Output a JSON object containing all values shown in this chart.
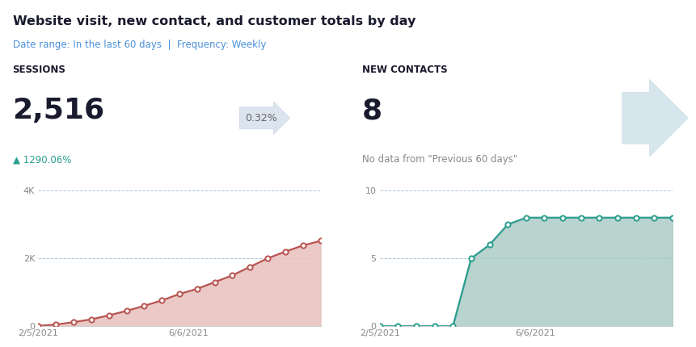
{
  "title": "Website visit, new contact, and customer totals by day",
  "subtitle": "Date range: In the last 60 days  |  Frequency: Weekly",
  "title_color": "#1a1a2e",
  "subtitle_color": "#4a90d9",
  "bg_color": "#ffffff",
  "sessions_label": "SESSIONS",
  "sessions_value": "2,516",
  "sessions_pct_label": "1290.06%",
  "conversion_rate": "0.32%",
  "new_contacts_label": "NEW CONTACTS",
  "new_contacts_value": "8",
  "no_data_text": "No data from \"Previous 60 days\"",
  "sessions_x": [
    0,
    1,
    2,
    3,
    4,
    5,
    6,
    7,
    8,
    9,
    10,
    11,
    12,
    13,
    14,
    15,
    16
  ],
  "sessions_y": [
    10,
    50,
    120,
    200,
    320,
    450,
    600,
    760,
    950,
    1100,
    1300,
    1500,
    1750,
    2000,
    2200,
    2380,
    2516
  ],
  "sessions_line_color": "#b85450",
  "sessions_fill_color": "#e8c4c0",
  "sessions_marker_color": "#ffffff",
  "sessions_marker_edge": "#b85450",
  "sessions_yticks": [
    0,
    2000,
    4000
  ],
  "sessions_ytick_labels": [
    "0",
    "2K",
    "4K"
  ],
  "sessions_ylim": [
    0,
    4400
  ],
  "sessions_xlabel_left": "2/5/2021",
  "sessions_xlabel_right": "6/6/2021",
  "contacts_x": [
    0,
    1,
    2,
    3,
    4,
    5,
    6,
    7,
    8,
    9,
    10,
    11,
    12,
    13,
    14,
    15,
    16
  ],
  "contacts_y": [
    0,
    0,
    0,
    0,
    0,
    5,
    6,
    7.5,
    8,
    8,
    8,
    8,
    8,
    8,
    8,
    8,
    8
  ],
  "contacts_line_color": "#2a9d8f",
  "contacts_fill_color": "#a8c8c4",
  "contacts_marker_color": "#ffffff",
  "contacts_marker_edge": "#2a9d8f",
  "contacts_yticks": [
    0,
    5,
    10
  ],
  "contacts_ytick_labels": [
    "0",
    "5",
    "10"
  ],
  "contacts_ylim": [
    0,
    11
  ],
  "contacts_xlabel_left": "2/5/2021",
  "contacts_xlabel_right": "6/6/2021",
  "grid_color": "#b0c4d8",
  "grid_linestyle": "--",
  "grid_linewidth": 0.7,
  "tick_color": "#888888",
  "axis_color": "#cccccc",
  "label_fontsize": 8.0,
  "stat_label_fontsize": 9
}
